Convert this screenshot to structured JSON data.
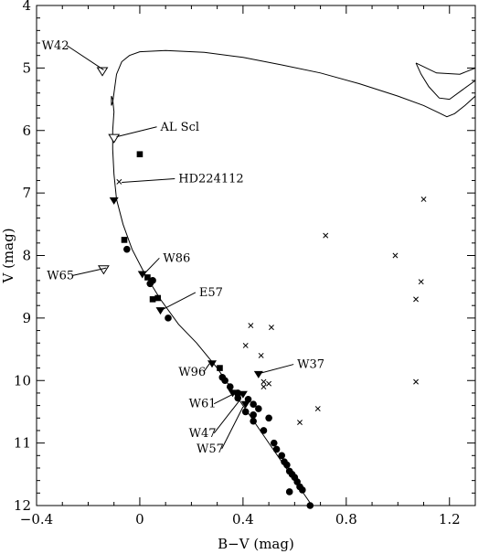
{
  "chart_data": {
    "type": "scatter",
    "title": "",
    "xlabel": "B−V (mag)",
    "ylabel": "V (mag)",
    "xlim": [
      -0.4,
      1.3
    ],
    "ylim": [
      4,
      12
    ],
    "y_inverted": true,
    "x_ticks": [
      -0.4,
      0,
      0.4,
      0.8,
      1.2
    ],
    "x_tick_labels": [
      "−0.4",
      "0",
      "0.4",
      "0.8",
      "1.2"
    ],
    "y_ticks": [
      4,
      5,
      6,
      7,
      8,
      9,
      10,
      11,
      12
    ],
    "y_tick_labels": [
      "4",
      "5",
      "6",
      "7",
      "8",
      "9",
      "10",
      "11",
      "12"
    ],
    "isochrone": [
      [
        0.667,
        12.0
      ],
      [
        0.6,
        11.6
      ],
      [
        0.5,
        11.0
      ],
      [
        0.4,
        10.4
      ],
      [
        0.3,
        9.8
      ],
      [
        0.22,
        9.4
      ],
      [
        0.15,
        9.1
      ],
      [
        0.08,
        8.7
      ],
      [
        0.02,
        8.3
      ],
      [
        -0.03,
        7.9
      ],
      [
        -0.065,
        7.5
      ],
      [
        -0.09,
        7.1
      ],
      [
        -0.1,
        6.7
      ],
      [
        -0.105,
        6.3
      ],
      [
        -0.105,
        6.0
      ],
      [
        -0.1,
        5.7
      ],
      [
        -0.105,
        5.5
      ],
      [
        -0.11,
        5.45
      ],
      [
        -0.11,
        5.6
      ],
      [
        -0.105,
        5.55
      ],
      [
        -0.1,
        5.4
      ],
      [
        -0.09,
        5.1
      ],
      [
        -0.07,
        4.9
      ],
      [
        -0.04,
        4.8
      ],
      [
        0.0,
        4.74
      ],
      [
        0.1,
        4.72
      ],
      [
        0.25,
        4.75
      ],
      [
        0.4,
        4.83
      ],
      [
        0.55,
        4.95
      ],
      [
        0.7,
        5.08
      ],
      [
        0.85,
        5.25
      ],
      [
        1.0,
        5.45
      ],
      [
        1.1,
        5.6
      ],
      [
        1.16,
        5.72
      ],
      [
        1.19,
        5.78
      ],
      [
        1.22,
        5.73
      ],
      [
        1.26,
        5.6
      ],
      [
        1.3,
        5.45
      ]
    ],
    "isochrone_rgb": [
      [
        1.07,
        4.92
      ],
      [
        1.09,
        5.1
      ],
      [
        1.12,
        5.3
      ],
      [
        1.16,
        5.48
      ],
      [
        1.2,
        5.5
      ],
      [
        1.25,
        5.35
      ],
      [
        1.3,
        5.2
      ]
    ],
    "isochrone_clump": [
      [
        1.07,
        4.92
      ],
      [
        1.15,
        5.08
      ],
      [
        1.24,
        5.1
      ],
      [
        1.3,
        5.0
      ]
    ],
    "series": [
      {
        "marker": "filled-circle",
        "points": [
          [
            -0.05,
            7.9
          ],
          [
            0.05,
            8.4
          ],
          [
            0.04,
            8.45
          ],
          [
            0.11,
            9.0
          ],
          [
            0.32,
            9.95
          ],
          [
            0.33,
            10.0
          ],
          [
            0.35,
            10.1
          ],
          [
            0.38,
            10.2
          ],
          [
            0.38,
            10.28
          ],
          [
            0.42,
            10.3
          ],
          [
            0.44,
            10.38
          ],
          [
            0.46,
            10.45
          ],
          [
            0.41,
            10.5
          ],
          [
            0.44,
            10.55
          ],
          [
            0.5,
            10.6
          ],
          [
            0.44,
            10.65
          ],
          [
            0.48,
            10.8
          ],
          [
            0.52,
            11.0
          ],
          [
            0.53,
            11.1
          ],
          [
            0.55,
            11.2
          ],
          [
            0.56,
            11.3
          ],
          [
            0.57,
            11.35
          ],
          [
            0.58,
            11.45
          ],
          [
            0.59,
            11.5
          ],
          [
            0.6,
            11.55
          ],
          [
            0.61,
            11.62
          ],
          [
            0.62,
            11.7
          ],
          [
            0.63,
            11.75
          ],
          [
            0.58,
            11.78
          ],
          [
            0.66,
            12.0
          ]
        ]
      },
      {
        "marker": "filled-square",
        "points": [
          [
            0.0,
            6.38
          ],
          [
            -0.06,
            7.75
          ],
          [
            0.03,
            8.35
          ],
          [
            0.05,
            8.7
          ],
          [
            0.07,
            8.68
          ],
          [
            0.31,
            9.8
          ]
        ]
      },
      {
        "marker": "filled-triangle-down",
        "points": [
          [
            -0.1,
            7.12
          ],
          [
            0.01,
            8.3
          ],
          [
            0.08,
            8.88
          ],
          [
            0.28,
            9.73
          ],
          [
            0.36,
            10.2
          ],
          [
            0.38,
            10.25
          ],
          [
            0.4,
            10.22
          ],
          [
            0.41,
            10.38
          ],
          [
            0.46,
            9.9
          ]
        ]
      },
      {
        "marker": "open-triangle-down",
        "points": [
          [
            -0.145,
            5.05
          ],
          [
            -0.1,
            6.12
          ],
          [
            -0.14,
            8.22
          ]
        ]
      },
      {
        "marker": "cross",
        "points": [
          [
            -0.08,
            6.82
          ],
          [
            0.43,
            9.12
          ],
          [
            0.51,
            9.15
          ],
          [
            0.41,
            9.44
          ],
          [
            0.47,
            9.6
          ],
          [
            0.48,
            10.1
          ],
          [
            0.48,
            10.02
          ],
          [
            0.5,
            10.05
          ],
          [
            0.69,
            10.45
          ],
          [
            0.62,
            10.67
          ],
          [
            0.72,
            7.68
          ],
          [
            0.99,
            8.0
          ],
          [
            1.1,
            7.1
          ],
          [
            1.09,
            8.42
          ],
          [
            1.07,
            8.7
          ],
          [
            1.07,
            10.02
          ]
        ]
      }
    ],
    "annotations": [
      {
        "text": "W42",
        "x": -0.38,
        "y": 4.7,
        "tip": [
          -0.14,
          5.03
        ],
        "label_side": "left"
      },
      {
        "text": "AL Scl",
        "x": 0.08,
        "y": 6.0,
        "tip": [
          -0.09,
          6.1
        ],
        "label_side": "right"
      },
      {
        "text": "HD224112",
        "x": 0.15,
        "y": 6.83,
        "tip": [
          -0.07,
          6.83
        ],
        "label_side": "right"
      },
      {
        "text": "W65",
        "x": -0.36,
        "y": 8.38,
        "tip": [
          -0.13,
          8.2
        ],
        "label_side": "left"
      },
      {
        "text": "W86",
        "x": 0.09,
        "y": 8.1,
        "tip": [
          0.02,
          8.28
        ],
        "label_side": "right"
      },
      {
        "text": "E57",
        "x": 0.23,
        "y": 8.65,
        "tip": [
          0.09,
          8.86
        ],
        "label_side": "right"
      },
      {
        "text": "W37",
        "x": 0.61,
        "y": 9.8,
        "tip": [
          0.47,
          9.88
        ],
        "label_side": "right"
      },
      {
        "text": "W96",
        "x": 0.15,
        "y": 9.92,
        "tip": [
          0.27,
          9.73
        ],
        "label_side": "left"
      },
      {
        "text": "W61",
        "x": 0.19,
        "y": 10.43,
        "tip": [
          0.36,
          10.22
        ],
        "label_side": "left"
      },
      {
        "text": "W47",
        "x": 0.19,
        "y": 10.9,
        "tip": [
          0.39,
          10.3
        ],
        "label_side": "left"
      },
      {
        "text": "W57",
        "x": 0.22,
        "y": 11.15,
        "tip": [
          0.4,
          10.42
        ],
        "label_side": "left"
      }
    ]
  }
}
